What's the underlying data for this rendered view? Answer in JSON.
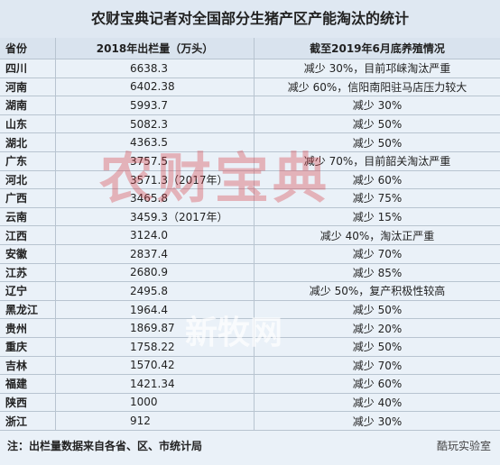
{
  "title": "农财宝典记者对全国部分生猪产区产能淘汰的统计",
  "table": {
    "header": [
      "省份",
      "2018年出栏量（万头）",
      "截至2019年6月底养殖情况"
    ],
    "rows": [
      [
        "四川",
        "6638.3",
        "减少 30%，目前邛崃淘汰严重"
      ],
      [
        "河南",
        "6402.38",
        "减少 60%，信阳南阳驻马店压力较大"
      ],
      [
        "湖南",
        "5993.7",
        "减少 30%"
      ],
      [
        "山东",
        "5082.3",
        "减少 50%"
      ],
      [
        "湖北",
        "4363.5",
        "减少 50%"
      ],
      [
        "广东",
        "3757.5",
        "减少 70%，目前韶关淘汰严重"
      ],
      [
        "河北",
        "3571.3（2017年）",
        "减少 60%"
      ],
      [
        "广西",
        "3465.8",
        "减少 75%"
      ],
      [
        "云南",
        "3459.3（2017年）",
        "减少 15%"
      ],
      [
        "江西",
        "3124.0",
        "减少 40%，淘汰正严重"
      ],
      [
        "安徽",
        "2837.4",
        "减少 70%"
      ],
      [
        "江苏",
        "2680.9",
        "减少 85%"
      ],
      [
        "辽宁",
        "2495.8",
        "减少 50%，复产积极性较高"
      ],
      [
        "黑龙江",
        "1964.4",
        "减少 50%"
      ],
      [
        "贵州",
        "1869.87",
        "减少 20%"
      ],
      [
        "重庆",
        "1758.22",
        "减少 50%"
      ],
      [
        "吉林",
        "1570.42",
        "减少 70%"
      ],
      [
        "福建",
        "1421.34",
        "减少 60%"
      ],
      [
        "陕西",
        "1000",
        "减少 40%"
      ],
      [
        "浙江",
        "912",
        "减少 30%"
      ]
    ]
  },
  "note": "注：出栏量数据来自各省、区、市统计局",
  "watermarks": [
    "农财宝典",
    "新牧网"
  ],
  "logo": "酷玩实验室"
}
